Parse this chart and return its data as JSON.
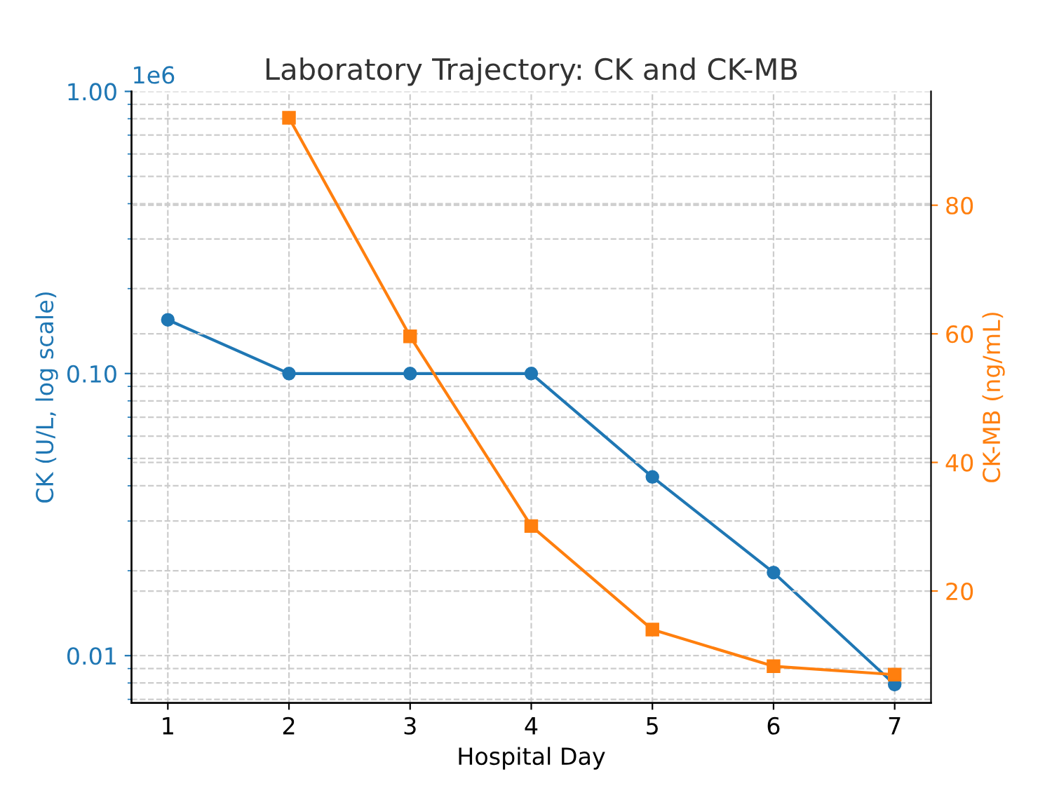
{
  "chart_data": {
    "type": "line",
    "title": "Laboratory Trajectory: CK and CK-MB",
    "xlabel": "Hospital Day",
    "ylabel": "CK (U/L, log scale)",
    "y2label": "CK-MB (ng/mL)",
    "x": [
      1,
      2,
      3,
      4,
      5,
      6,
      7
    ],
    "series": [
      {
        "name": null,
        "color": "#1f77b4",
        "marker": "circle",
        "values": [
          0.155,
          0.1,
          0.1,
          0.1,
          0.043,
          0.0197,
          0.0079
        ]
      },
      {
        "name": null,
        "color": "#ff7f0e",
        "marker": "square",
        "axis": "y2",
        "values": [
          null,
          93.6,
          59.6,
          30.1,
          14.0,
          8.3,
          7.0
        ]
      }
    ],
    "log": "y",
    "xlim": [
      0.7,
      7.3
    ],
    "xticks": [
      1,
      2,
      3,
      4,
      5,
      6,
      7
    ],
    "ylim": [
      0.0068,
      1.0
    ],
    "yticks": [
      {
        "value": 0.01,
        "label": "0.01"
      },
      {
        "value": 0.1,
        "label": "0.10"
      },
      {
        "value": 1.0,
        "label": "1.00"
      }
    ],
    "y2lim": [
      2.6,
      97.7
    ],
    "y2ticks": [
      20,
      40,
      60,
      80
    ],
    "annotations": [
      "1e6"
    ],
    "grid": true,
    "line_style": "solid"
  }
}
